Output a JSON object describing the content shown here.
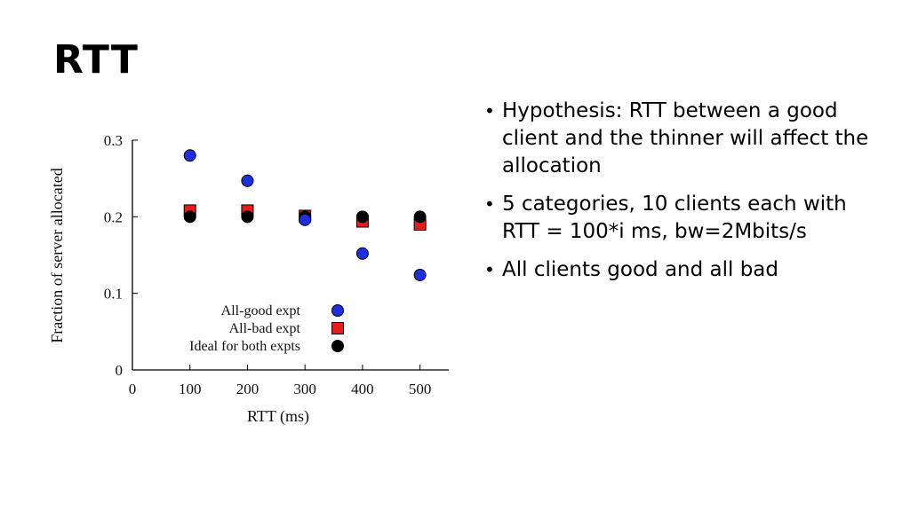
{
  "slide": {
    "title": "RTT",
    "bullets": [
      "Hypothesis: RTT between a good client and the thinner will affect the allocation",
      "5 categories, 10 clients each with RTT = 100*i ms, bw=2Mbits/s",
      "All clients good and all bad"
    ]
  },
  "chart_data": {
    "type": "scatter",
    "xlabel": "RTT (ms)",
    "ylabel": "Fraction of server allocated",
    "xlim": [
      0,
      550
    ],
    "ylim": [
      0,
      0.3
    ],
    "xticks": [
      "0",
      "100",
      "200",
      "300",
      "400",
      "500"
    ],
    "yticks": [
      "0",
      "0.1",
      "0.2",
      "0.3"
    ],
    "grid": false,
    "legend_position": "bottom-center",
    "series": [
      {
        "name": "All-good expt",
        "marker": "circle",
        "color": "#1f2fe0",
        "x": [
          100,
          200,
          300,
          400,
          500
        ],
        "y": [
          0.28,
          0.247,
          0.196,
          0.152,
          0.124
        ]
      },
      {
        "name": "All-bad expt",
        "marker": "square",
        "color": "#e81c1c",
        "x": [
          100,
          200,
          300,
          400,
          500
        ],
        "y": [
          0.208,
          0.208,
          0.201,
          0.194,
          0.19
        ]
      },
      {
        "name": "Ideal for both expts",
        "marker": "circle",
        "color": "#000000",
        "x": [
          100,
          200,
          300,
          400,
          500
        ],
        "y": [
          0.2,
          0.2,
          0.2,
          0.2,
          0.2
        ]
      }
    ]
  }
}
